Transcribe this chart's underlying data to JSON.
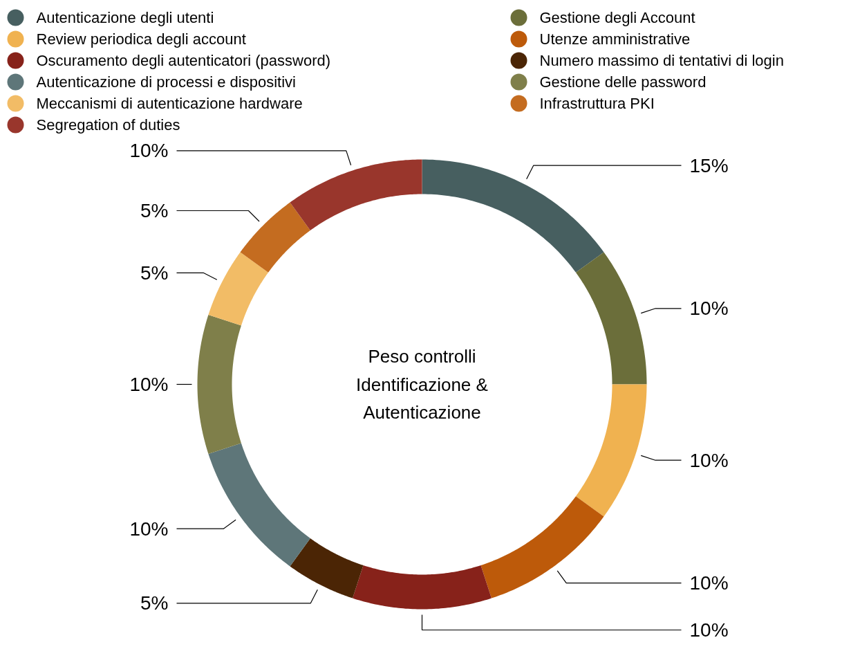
{
  "chart_data": {
    "type": "donut",
    "title": "Peso controlli\nIdentificazione &\nAutenticazione",
    "categories": [
      "Autenticazione degli utenti",
      "Gestione degli Account",
      "Review periodica degli account",
      "Utenze amministrative",
      "Oscuramento degli autenticatori (password)",
      "Numero massimo di tentativi di login",
      "Autenticazione di processi e dispositivi",
      "Gestione delle password",
      "Meccanismi di autenticazione hardware",
      "Infrastruttura PKI",
      "Segregation of duties"
    ],
    "values": [
      15,
      10,
      10,
      10,
      10,
      5,
      10,
      10,
      5,
      5,
      10
    ],
    "colors": [
      "#475f60",
      "#6b6e3a",
      "#f0b250",
      "#bd5a0a",
      "#87221a",
      "#4b2505",
      "#5e7679",
      "#7f7f4a",
      "#f2bc66",
      "#c46c20",
      "#99362c"
    ],
    "value_labels": [
      "15%",
      "10%",
      "10%",
      "10%",
      "10%",
      "5%",
      "10%",
      "10%",
      "5%",
      "5%",
      "10%"
    ],
    "legend": "top"
  }
}
